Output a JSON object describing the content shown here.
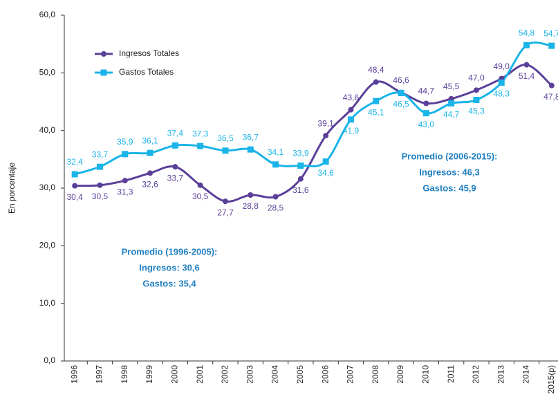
{
  "chart_data": {
    "type": "line",
    "y_label": "En porcentaje",
    "categories": [
      "1996",
      "1997",
      "1998",
      "1999",
      "2000",
      "2001",
      "2002",
      "2003",
      "2004",
      "2005",
      "2006",
      "2007",
      "2008",
      "2009",
      "2010",
      "2011",
      "2012",
      "2013",
      "2014",
      "2015(p)"
    ],
    "series": [
      {
        "name": "Ingresos Totales",
        "color": "#5b3f99",
        "marker": "circle",
        "values": [
          30.4,
          30.5,
          31.3,
          32.6,
          33.7,
          30.5,
          27.7,
          28.8,
          28.5,
          31.6,
          39.1,
          43.6,
          48.4,
          46.6,
          44.7,
          45.5,
          47.0,
          49.0,
          51.4,
          47.8
        ],
        "value_labels": [
          "30,4",
          "30,5",
          "31,3",
          "32,6",
          "33,7",
          "30,5",
          "27,7",
          "28,8",
          "28,5",
          "31,6",
          "39,1",
          "43,6",
          "48,4",
          "46,6",
          "44,7",
          "45,5",
          "47,0",
          "49,0",
          "51,4",
          "47,8"
        ]
      },
      {
        "name": "Gastos Totales",
        "color": "#1ab4e8",
        "marker": "square",
        "values": [
          32.4,
          33.7,
          35.9,
          36.1,
          37.4,
          37.3,
          36.5,
          36.7,
          34.1,
          33.9,
          34.6,
          41.9,
          45.1,
          46.5,
          43.0,
          44.7,
          45.3,
          48.3,
          54.8,
          54.7
        ],
        "value_labels": [
          "32,4",
          "33,7",
          "35,9",
          "36,1",
          "37,4",
          "37,3",
          "36,5",
          "36,7",
          "34,1",
          "33,9",
          "34,6",
          "41,9",
          "45,1",
          "46,5",
          "43,0",
          "44,7",
          "45,3",
          "48,3",
          "54,8",
          "54,7"
        ]
      }
    ],
    "ylim": [
      0,
      60
    ],
    "yticks": [
      {
        "value": 0,
        "label": "0,0"
      },
      {
        "value": 10,
        "label": "10,0"
      },
      {
        "value": 20,
        "label": "20,0"
      },
      {
        "value": 30,
        "label": "30,0"
      },
      {
        "value": 40,
        "label": "40,0"
      },
      {
        "value": 50,
        "label": "50,0"
      },
      {
        "value": 60,
        "label": "60,0"
      }
    ],
    "annotations": [
      "Promedio (1996-2005):",
      "Ingresos: 30,6",
      "Gastos: 35,4",
      "Promedio (2006-2015):",
      "Ingresos: 46,3",
      "Gastos: 45,9"
    ],
    "legend": "upper left"
  }
}
